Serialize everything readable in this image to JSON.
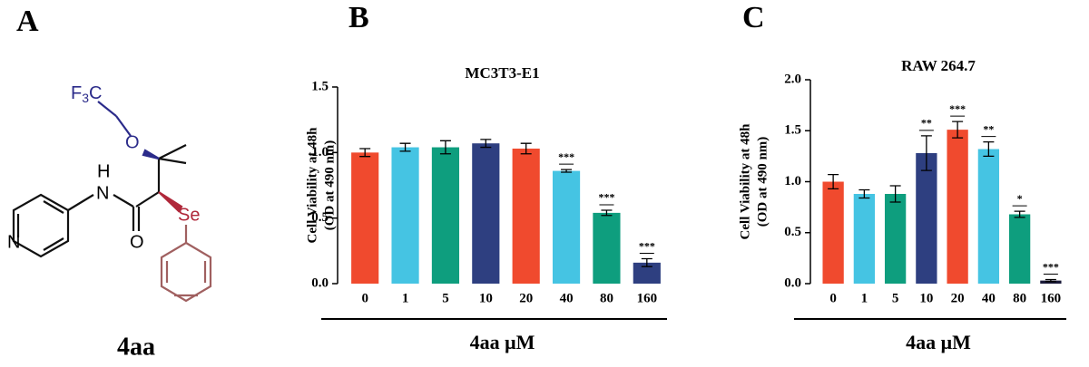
{
  "panels": [
    "A",
    "B",
    "C"
  ],
  "structure": {
    "name": "4aa",
    "atoms": [
      "F",
      "3",
      "C",
      "O",
      "H",
      "N",
      "O",
      "Se",
      "N"
    ]
  },
  "chart_data": [
    {
      "type": "bar",
      "title": "MC3T3-E1",
      "ylabel": [
        "Cell Viability at 48h",
        "(OD at 490 nm)"
      ],
      "xlabel": "4aa μM",
      "categories": [
        "0",
        "1",
        "5",
        "10",
        "20",
        "40",
        "80",
        "160"
      ],
      "values": [
        1.0,
        1.04,
        1.04,
        1.07,
        1.03,
        0.86,
        0.54,
        0.16
      ],
      "errors": [
        0.03,
        0.03,
        0.05,
        0.03,
        0.04,
        0.01,
        0.02,
        0.03
      ],
      "significance": [
        null,
        null,
        null,
        null,
        null,
        "***",
        "***",
        "***"
      ],
      "colors": [
        "#f04a2e",
        "#45c4e3",
        "#0e9e7e",
        "#2e3f80",
        "#f04a2e",
        "#45c4e3",
        "#0e9e7e",
        "#2e3f80"
      ],
      "ylim": [
        0,
        1.5
      ],
      "yticks": [
        {
          "value": 0,
          "label": "0.0"
        },
        {
          "value": 0.5,
          "label": "0.5"
        },
        {
          "value": 1,
          "label": "1.0"
        },
        {
          "value": 1.5,
          "label": "1.5"
        }
      ]
    },
    {
      "type": "bar",
      "title": "RAW 264.7",
      "ylabel": [
        "Cell Viability at 48h",
        "(OD at 490 nm)"
      ],
      "xlabel": "4aa μM",
      "categories": [
        "0",
        "1",
        "5",
        "10",
        "20",
        "40",
        "80",
        "160"
      ],
      "values": [
        1.0,
        0.88,
        0.88,
        1.28,
        1.51,
        1.32,
        0.68,
        0.03
      ],
      "errors": [
        0.07,
        0.04,
        0.08,
        0.17,
        0.08,
        0.07,
        0.03,
        0.01
      ],
      "significance": [
        null,
        null,
        null,
        "**",
        "***",
        "**",
        "*",
        "***"
      ],
      "colors": [
        "#f04a2e",
        "#45c4e3",
        "#0e9e7e",
        "#2e3f80",
        "#f04a2e",
        "#45c4e3",
        "#0e9e7e",
        "#1a1a3a"
      ],
      "ylim": [
        0,
        2
      ],
      "yticks": [
        {
          "value": 0,
          "label": "0.0"
        },
        {
          "value": 0.5,
          "label": "0.5"
        },
        {
          "value": 1,
          "label": "1.0"
        },
        {
          "value": 1.5,
          "label": "1.5"
        },
        {
          "value": 2,
          "label": "2.0"
        }
      ]
    }
  ]
}
